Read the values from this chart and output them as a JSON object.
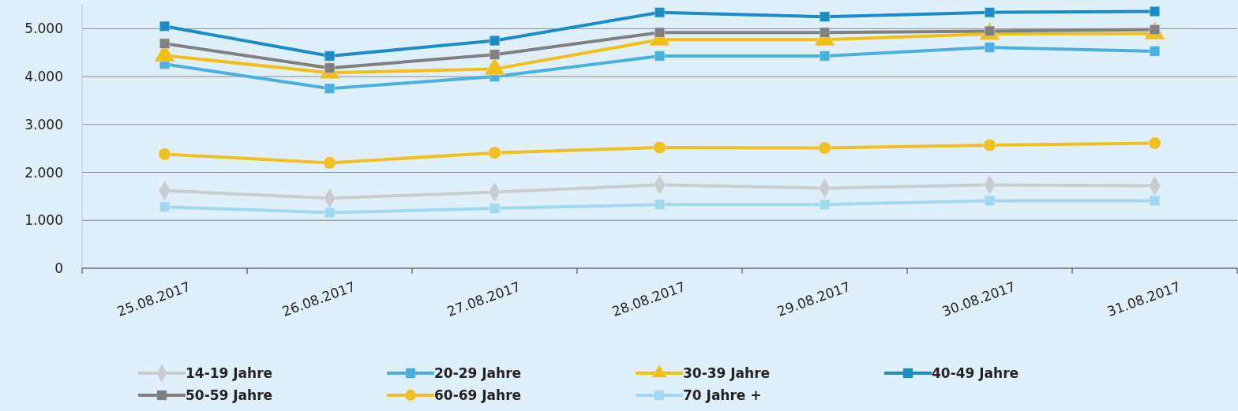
{
  "chart_data": {
    "type": "line",
    "categories": [
      "25.08.2017",
      "26.08.2017",
      "27.08.2017",
      "28.08.2017",
      "29.08.2017",
      "30.08.2017",
      "31.08.2017"
    ],
    "ylim": [
      0,
      5500
    ],
    "yticks": [
      0,
      {
        "value": 1000,
        "label": "1.000"
      },
      {
        "value": 2000,
        "label": "2.000"
      },
      {
        "value": 3000,
        "label": "3.000"
      },
      {
        "value": 4000,
        "label": "4.000"
      },
      {
        "value": 5000,
        "label": "5.000"
      }
    ],
    "grid": "y",
    "legend": "bottom",
    "series": [
      {
        "name": "14-19 Jahre",
        "color": "#c8cdd0",
        "marker": "diamond",
        "values": [
          1620,
          1460,
          1590,
          1740,
          1670,
          1740,
          1720
        ]
      },
      {
        "name": "20-29 Jahre",
        "color": "#4ab0e0",
        "marker": "square",
        "values": [
          4260,
          3750,
          4000,
          4430,
          4430,
          4610,
          4530
        ]
      },
      {
        "name": "30-39 Jahre",
        "color": "#f2c014",
        "marker": "triangle",
        "values": [
          4440,
          4080,
          4160,
          4770,
          4770,
          4890,
          4900
        ]
      },
      {
        "name": "40-49 Jahre",
        "color": "#1a8cc8",
        "marker": "square",
        "values": [
          5050,
          4430,
          4750,
          5340,
          5250,
          5340,
          5360
        ]
      },
      {
        "name": "50-59 Jahre",
        "color": "#808080",
        "marker": "square",
        "values": [
          4690,
          4180,
          4460,
          4920,
          4920,
          4950,
          4980
        ]
      },
      {
        "name": "60-69 Jahre",
        "color": "#f0c020",
        "marker": "circle",
        "values": [
          2380,
          2200,
          2410,
          2520,
          2510,
          2570,
          2610
        ]
      },
      {
        "name": "70 Jahre +",
        "color": "#a0d8ef",
        "marker": "square",
        "values": [
          1280,
          1160,
          1250,
          1330,
          1330,
          1410,
          1410
        ]
      }
    ]
  }
}
